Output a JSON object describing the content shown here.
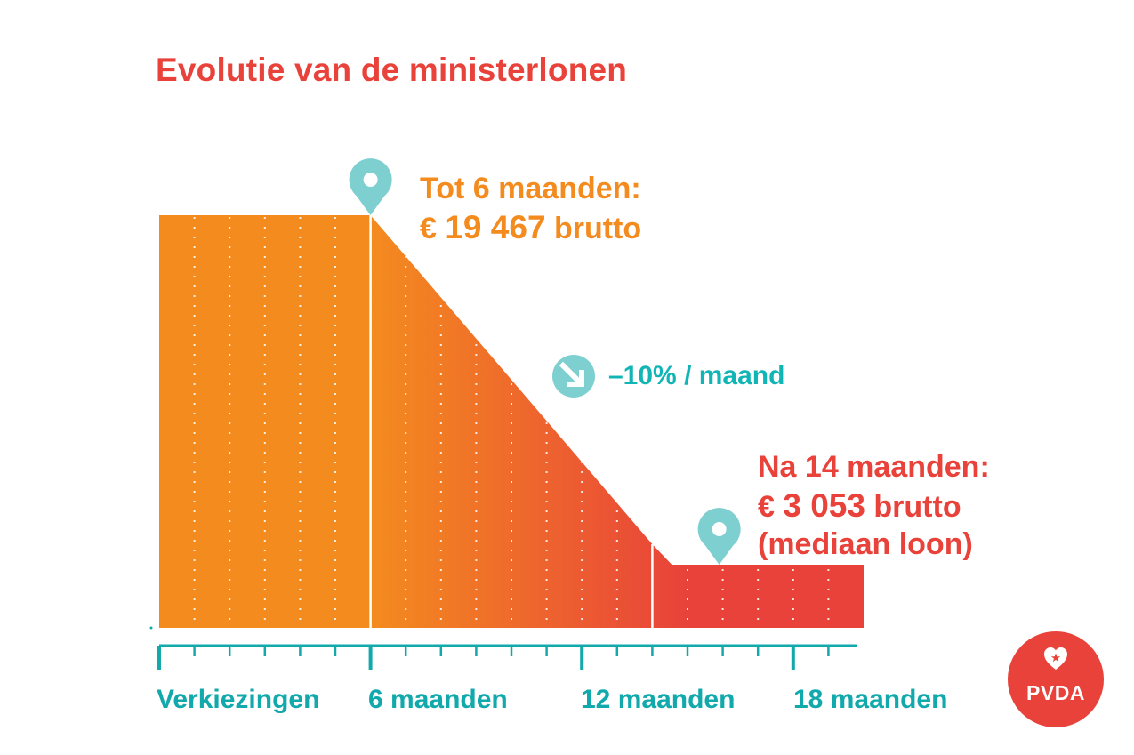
{
  "title": "Evolutie van de ministerlonen",
  "annotations": {
    "start": {
      "line1": "Tot 6 maanden:",
      "prefix": "€ ",
      "amount": "19 467",
      "suffix": " brutto"
    },
    "rate": {
      "text": "–10% / maand"
    },
    "end": {
      "line1": "Na 14 maanden:",
      "prefix": "€ ",
      "amount": "3 053",
      "suffix": " brutto",
      "line3": "(mediaan loon)"
    }
  },
  "axis": {
    "tick_labels": [
      "Verkiezingen",
      "6 maanden",
      "12 maanden",
      "18 maanden"
    ]
  },
  "logo": {
    "text": "PVDA"
  },
  "colors": {
    "orange": "#f48b1f",
    "red": "#e8423a",
    "teal": "#12a9ac",
    "marker": "#7ecfd0"
  },
  "icons": {
    "marker": "map-pin-icon",
    "decline": "arrow-down-right-icon",
    "logo": "heart-star-icon"
  },
  "chart_data": {
    "type": "area",
    "x": [
      0,
      6,
      14,
      20
    ],
    "y": [
      19467,
      19467,
      3053,
      3053
    ],
    "xlim": [
      0,
      20
    ],
    "x_ticks": [
      0,
      6,
      12,
      18
    ],
    "ylim": [
      0,
      19467
    ],
    "grid": true,
    "segments": [
      {
        "from": 0,
        "to": 6,
        "value": 19467
      },
      {
        "from": 6,
        "to": 14,
        "slope_label": "–10% / maand"
      },
      {
        "from": 14,
        "to": 20,
        "value": 3053
      }
    ],
    "markers": [
      {
        "x": 6,
        "y": 19467
      },
      {
        "x": 15,
        "y": 3053
      }
    ]
  }
}
